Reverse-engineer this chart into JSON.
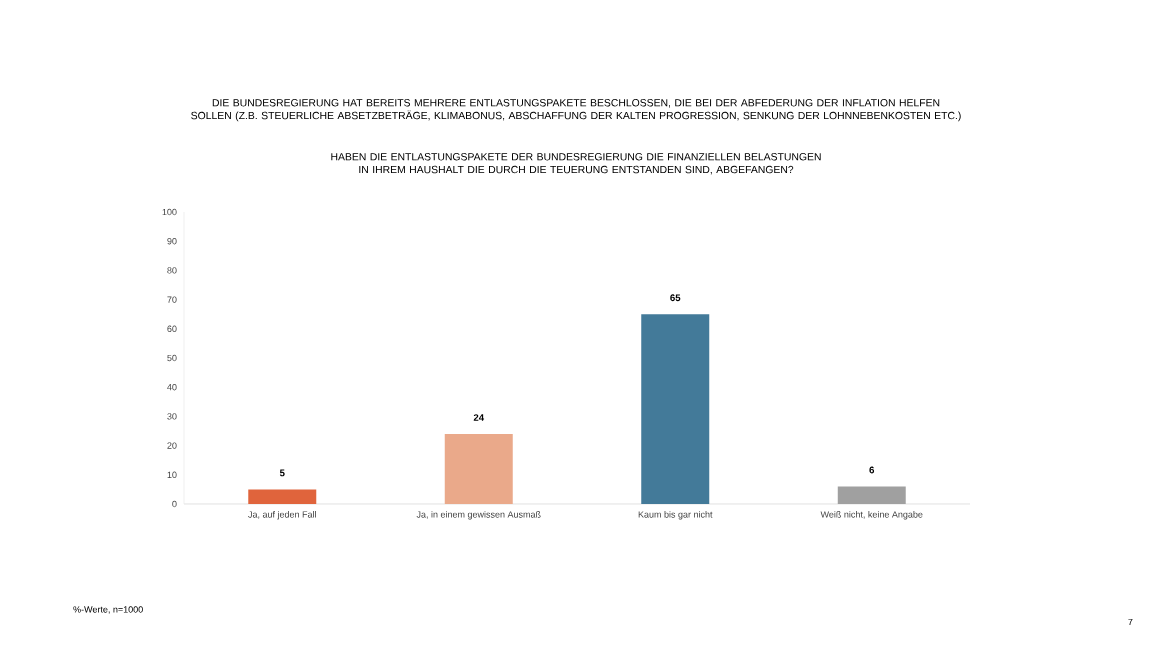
{
  "chart_data": {
    "type": "bar",
    "title": "DIE BUNDESREGIERUNG HAT BEREITS MEHRERE ENTLASTUNGSPAKETE BESCHLOSSEN, DIE BEI DER ABFEDERUNG DER INFLATION HELFEN SOLLEN (Z.B. STEUERLICHE ABSETZBETRÄGE, KLIMABONUS, ABSCHAFFUNG DER KALTEN PROGRESSION, SENKUNG DER LOHNNEBENKOSTEN ETC.)",
    "subtitle": "HABEN DIE ENTLASTUNGSPAKETE DER BUNDESREGIERUNG DIE FINANZIELLEN BELASTUNGEN IN IHREM HAUSHALT DIE DURCH DIE TEUERUNG ENTSTANDEN SIND, ABGEFANGEN?",
    "categories": [
      "Ja, auf jeden Fall",
      "Ja, in einem gewissen Ausmaß",
      "Kaum bis gar nicht",
      "Weiß nicht, keine Angabe"
    ],
    "values": [
      5,
      24,
      65,
      6
    ],
    "colors": [
      "#e0643c",
      "#eaa98a",
      "#437a99",
      "#a0a0a0"
    ],
    "ylim": [
      0,
      100
    ],
    "yticks": [
      0,
      10,
      20,
      30,
      40,
      50,
      60,
      70,
      80,
      90,
      100
    ],
    "data_labels": true,
    "annotations": [
      "%-Werte, n=1000",
      "7"
    ]
  }
}
